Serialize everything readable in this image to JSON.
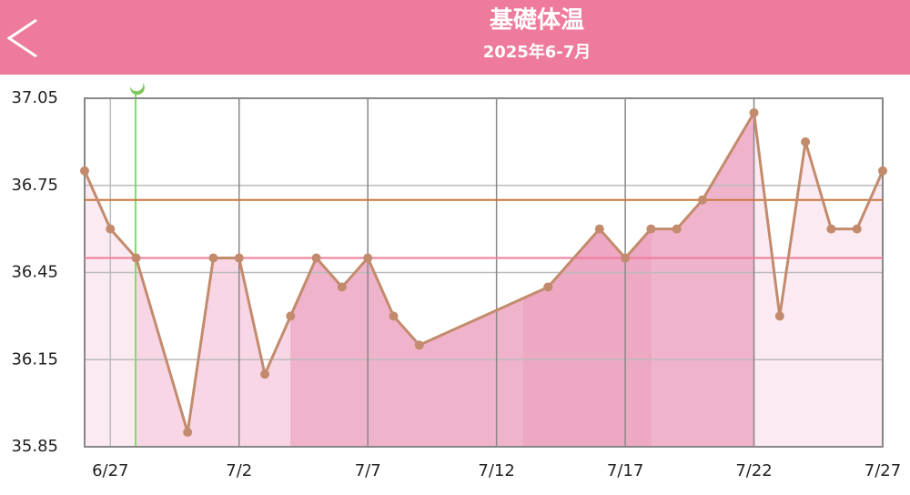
{
  "chart_data": {
    "type": "line",
    "title": "基礎体温",
    "subtitle": "2025年6-7月",
    "categories": [
      null,
      "6/27",
      null,
      null,
      null,
      null,
      "7/2",
      null,
      null,
      null,
      null,
      "7/7",
      null,
      null,
      null,
      null,
      "7/12",
      null,
      null,
      null,
      null,
      "7/17",
      null,
      null,
      null,
      null,
      "7/22",
      null,
      null,
      null,
      null,
      "7/27"
    ],
    "values": [
      36.8,
      36.6,
      36.5,
      null,
      35.9,
      36.5,
      36.5,
      36.1,
      36.3,
      36.5,
      36.4,
      36.5,
      36.3,
      36.2,
      null,
      null,
      null,
      null,
      36.4,
      null,
      36.6,
      36.5,
      36.6,
      36.6,
      36.7,
      null,
      37.0,
      36.3,
      36.9,
      36.6,
      36.6,
      36.8
    ],
    "color": "#c38b6d",
    "ylim": [
      35.85,
      37.05
    ],
    "yticks": [
      35.85,
      36.15,
      36.45,
      36.75,
      37.05
    ],
    "grid": true,
    "reference_lines": [
      {
        "value": 36.7,
        "color": "#c8763a"
      },
      {
        "value": 36.5,
        "color": "#ee7b9b"
      }
    ]
  }
}
